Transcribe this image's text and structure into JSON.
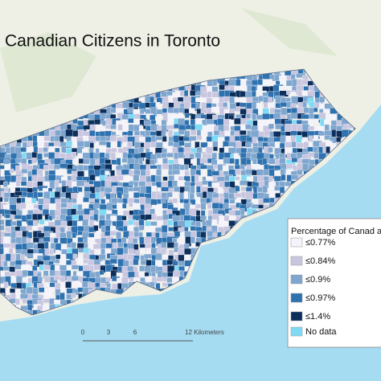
{
  "title": "Canadian Citizens in Toronto",
  "legend": {
    "title": "Percentage of Canad a",
    "items": [
      {
        "label": "≤0.77%",
        "color": "#f4f3f9"
      },
      {
        "label": "≤0.84%",
        "color": "#c9c6e0"
      },
      {
        "label": "≤0.9%",
        "color": "#7fa6cf"
      },
      {
        "label": "≤0.97%",
        "color": "#2f72b0"
      },
      {
        "label": "≤1.4%",
        "color": "#0c2f5c"
      },
      {
        "label": "No data",
        "color": "#7fdaf3"
      }
    ]
  },
  "scale_bar": {
    "labels": [
      "0",
      "3",
      "6",
      "12 Kilometers"
    ]
  }
}
